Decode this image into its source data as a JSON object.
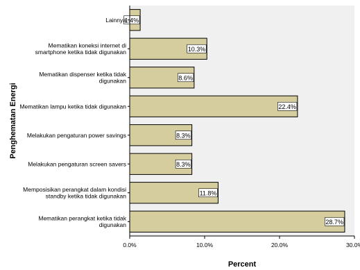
{
  "chart_data": {
    "type": "bar",
    "orientation": "horizontal",
    "categories": [
      [
        "Lainnya"
      ],
      [
        "Mematikan koneksi internet di",
        "smartphone ketika tidak digunakan"
      ],
      [
        "Mematikan dispenser ketika tidak",
        "digunakan"
      ],
      [
        "Mematikan lampu ketika tidak digunakan"
      ],
      [
        "Melakukan pengaturan power savings"
      ],
      [
        "Melakukan pengaturan screen savers"
      ],
      [
        "Memposisikan perangkat dalam kondisi",
        "standby ketika tidak digunakan"
      ],
      [
        "Mematikan perangkat ketika tidak",
        "digunakan"
      ]
    ],
    "values": [
      1.4,
      10.3,
      8.6,
      22.4,
      8.3,
      8.3,
      11.8,
      28.7
    ],
    "data_labels": [
      "1.4%",
      "10.3%",
      "8.6%",
      "22.4%",
      "8.3%",
      "8.3%",
      "11.8%",
      "28.7%"
    ],
    "xlabel": "Percent",
    "ylabel": "Penghematan Energi",
    "xlim": [
      0,
      30
    ],
    "xticks": [
      0,
      10,
      20,
      30
    ],
    "xtick_labels": [
      "0.0%",
      "10.0%",
      "20.0%",
      "30.0%"
    ],
    "grid": false,
    "colors": {
      "bar_fill": "#d6cd9e",
      "bar_stroke": "#000000",
      "plot_background": "#f0f0f0",
      "label_background": "#ffffff"
    }
  }
}
